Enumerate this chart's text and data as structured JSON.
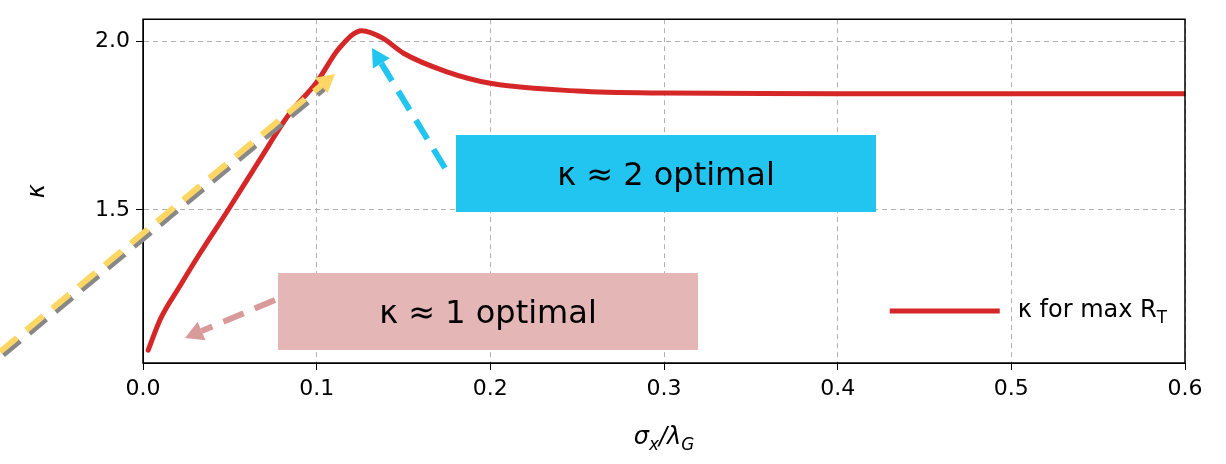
{
  "chart_data": {
    "type": "line",
    "xlabel": "σ$_{x}$/λ$_{G}$",
    "ylabel": "κ",
    "x": [
      0.003,
      0.01,
      0.021,
      0.033,
      0.049,
      0.067,
      0.084,
      0.1,
      0.113,
      0.126,
      0.138,
      0.15,
      0.175,
      0.2,
      0.25,
      0.3,
      0.4,
      0.5,
      0.6
    ],
    "series": [
      {
        "name": "κ for max R$_{T}$",
        "color": "#d62728",
        "values": [
          1.084,
          1.176,
          1.272,
          1.373,
          1.5,
          1.647,
          1.783,
          1.879,
          1.98,
          2.032,
          2.01,
          1.965,
          1.91,
          1.876,
          1.853,
          1.847,
          1.845,
          1.845,
          1.845
        ]
      }
    ],
    "annotations": [
      "κ ≈ 2 optimal",
      "κ ≈ 1 optimal"
    ],
    "xlim": [
      0,
      0.6
    ],
    "ylim": [
      1.046,
      2.066
    ],
    "xticks": [
      {
        "value": 0,
        "label": "0.0"
      },
      {
        "value": 0.1,
        "label": "0.1"
      },
      {
        "value": 0.2,
        "label": "0.2"
      },
      {
        "value": 0.3,
        "label": "0.3"
      },
      {
        "value": 0.4,
        "label": "0.4"
      },
      {
        "value": 0.5,
        "label": "0.5"
      },
      {
        "value": 0.6,
        "label": "0.6"
      }
    ],
    "yticks": [
      1.5,
      {
        "value": 2,
        "label": "2.0"
      }
    ],
    "grid": true,
    "legend": "bottom right",
    "line_style": "solid",
    "marker": "none"
  }
}
